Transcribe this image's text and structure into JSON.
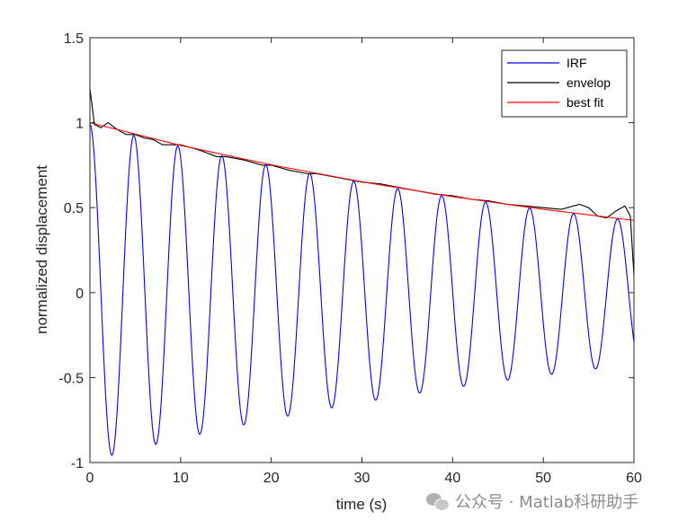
{
  "chart_data": {
    "type": "line",
    "xlabel": "time (s)",
    "ylabel": "normalized displacement",
    "xlim": [
      0,
      60
    ],
    "ylim": [
      -1,
      1.5
    ],
    "xticks": [
      0,
      10,
      20,
      30,
      40,
      50,
      60
    ],
    "yticks": [
      -1,
      -0.5,
      0,
      0.5,
      1,
      1.5
    ],
    "legend_position": "top-right",
    "grid": false,
    "series": [
      {
        "name": "IRF",
        "color": "#0000ff",
        "model": {
          "kind": "damped_cosine",
          "amplitude": 0.99,
          "decay_rate": 0.0142,
          "period": 4.85
        }
      },
      {
        "name": "envelop",
        "color": "#000000",
        "x": [
          0,
          0.5,
          1.2,
          2,
          3,
          4,
          5,
          6,
          7,
          8,
          9,
          10,
          12,
          14,
          15,
          17,
          19,
          20,
          22,
          24,
          25,
          27,
          29,
          30,
          32,
          35,
          38,
          40,
          42,
          44,
          46,
          48,
          50,
          52,
          54,
          55,
          56,
          57,
          58,
          59,
          59.6,
          60
        ],
        "y": [
          1.2,
          0.99,
          0.97,
          1.0,
          0.96,
          0.93,
          0.93,
          0.91,
          0.9,
          0.87,
          0.87,
          0.87,
          0.84,
          0.8,
          0.8,
          0.78,
          0.75,
          0.75,
          0.72,
          0.7,
          0.7,
          0.68,
          0.66,
          0.65,
          0.64,
          0.61,
          0.58,
          0.57,
          0.55,
          0.54,
          0.52,
          0.51,
          0.5,
          0.49,
          0.52,
          0.5,
          0.45,
          0.44,
          0.48,
          0.51,
          0.45,
          0.1
        ]
      },
      {
        "name": "best fit",
        "color": "#ff0000",
        "x": [
          0,
          10,
          20,
          30,
          40,
          50,
          60
        ],
        "y": [
          1.0,
          0.866,
          0.752,
          0.652,
          0.565,
          0.49,
          0.425
        ]
      }
    ]
  },
  "watermark": {
    "text": "公众号 · Matlab科研助手",
    "icon": "wechat-icon"
  }
}
